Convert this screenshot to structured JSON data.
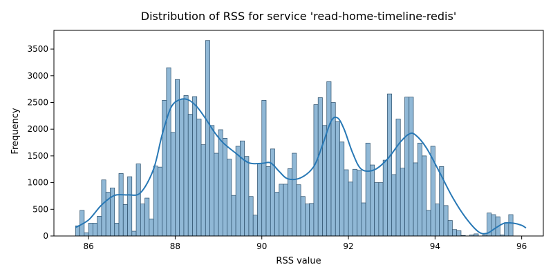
{
  "chart_data": {
    "type": "bar",
    "title": "Distribution of RSS for service 'read-home-timeline-redis'",
    "xlabel": "RSS value",
    "ylabel": "Frequency",
    "xlim": [
      85.2,
      96.5
    ],
    "ylim": [
      0,
      3850
    ],
    "xticks": [
      86,
      88,
      90,
      92,
      94,
      96
    ],
    "xtick_labels": [
      "86",
      "88",
      "90",
      "92",
      "94",
      "96"
    ],
    "yticks": [
      0,
      500,
      1000,
      1500,
      2000,
      2500,
      3000,
      3500
    ],
    "ytick_labels": [
      "0",
      "500",
      "1000",
      "1500",
      "2000",
      "2500",
      "3000",
      "3500"
    ],
    "grid": false,
    "legend": "none",
    "colors": {
      "bar_fill": "#90b8d6",
      "bar_edge": "#2a4d69",
      "kde": "#2878b5"
    },
    "bins": {
      "start": 85.7,
      "width": 0.1,
      "counts": [
        190,
        480,
        60,
        240,
        240,
        370,
        1050,
        820,
        900,
        240,
        1170,
        590,
        1110,
        90,
        1350,
        600,
        710,
        320,
        1310,
        1290,
        2540,
        3150,
        1940,
        2930,
        2560,
        2630,
        2280,
        2610,
        2190,
        1710,
        3660,
        2070,
        1550,
        1990,
        1830,
        1440,
        760,
        1680,
        1780,
        1490,
        740,
        390,
        1360,
        2540,
        1300,
        1630,
        820,
        970,
        970,
        1260,
        1550,
        960,
        740,
        600,
        610,
        2460,
        2590,
        2070,
        2890,
        2500,
        2140,
        1760,
        1240,
        1010,
        1250,
        1230,
        620,
        1740,
        1330,
        1000,
        1000,
        1420,
        2660,
        1150,
        2190,
        1270,
        2600,
        2600,
        1370,
        1740,
        1500,
        480,
        1680,
        600,
        1300,
        570,
        290,
        120,
        100,
        10,
        0,
        20,
        40,
        0,
        20,
        430,
        400,
        360,
        20,
        250,
        400
      ]
    },
    "kde": {
      "x": [
        85.7,
        86.0,
        86.3,
        86.6,
        86.9,
        87.2,
        87.5,
        87.7,
        87.9,
        88.1,
        88.3,
        88.5,
        88.7,
        88.9,
        89.1,
        89.4,
        89.7,
        90.0,
        90.2,
        90.4,
        90.6,
        90.9,
        91.2,
        91.4,
        91.6,
        91.75,
        91.9,
        92.1,
        92.3,
        92.6,
        92.9,
        93.2,
        93.4,
        93.55,
        93.8,
        94.1,
        94.4,
        94.7,
        95.0,
        95.2,
        95.4,
        95.6,
        95.8,
        96.0,
        96.1
      ],
      "y": [
        160,
        300,
        580,
        760,
        770,
        810,
        1250,
        1900,
        2400,
        2550,
        2550,
        2420,
        2200,
        1950,
        1750,
        1550,
        1370,
        1360,
        1370,
        1210,
        1070,
        1090,
        1300,
        1700,
        2150,
        2210,
        2000,
        1550,
        1250,
        1240,
        1440,
        1760,
        1910,
        1890,
        1650,
        1200,
        730,
        350,
        80,
        50,
        150,
        240,
        240,
        200,
        150
      ]
    }
  }
}
